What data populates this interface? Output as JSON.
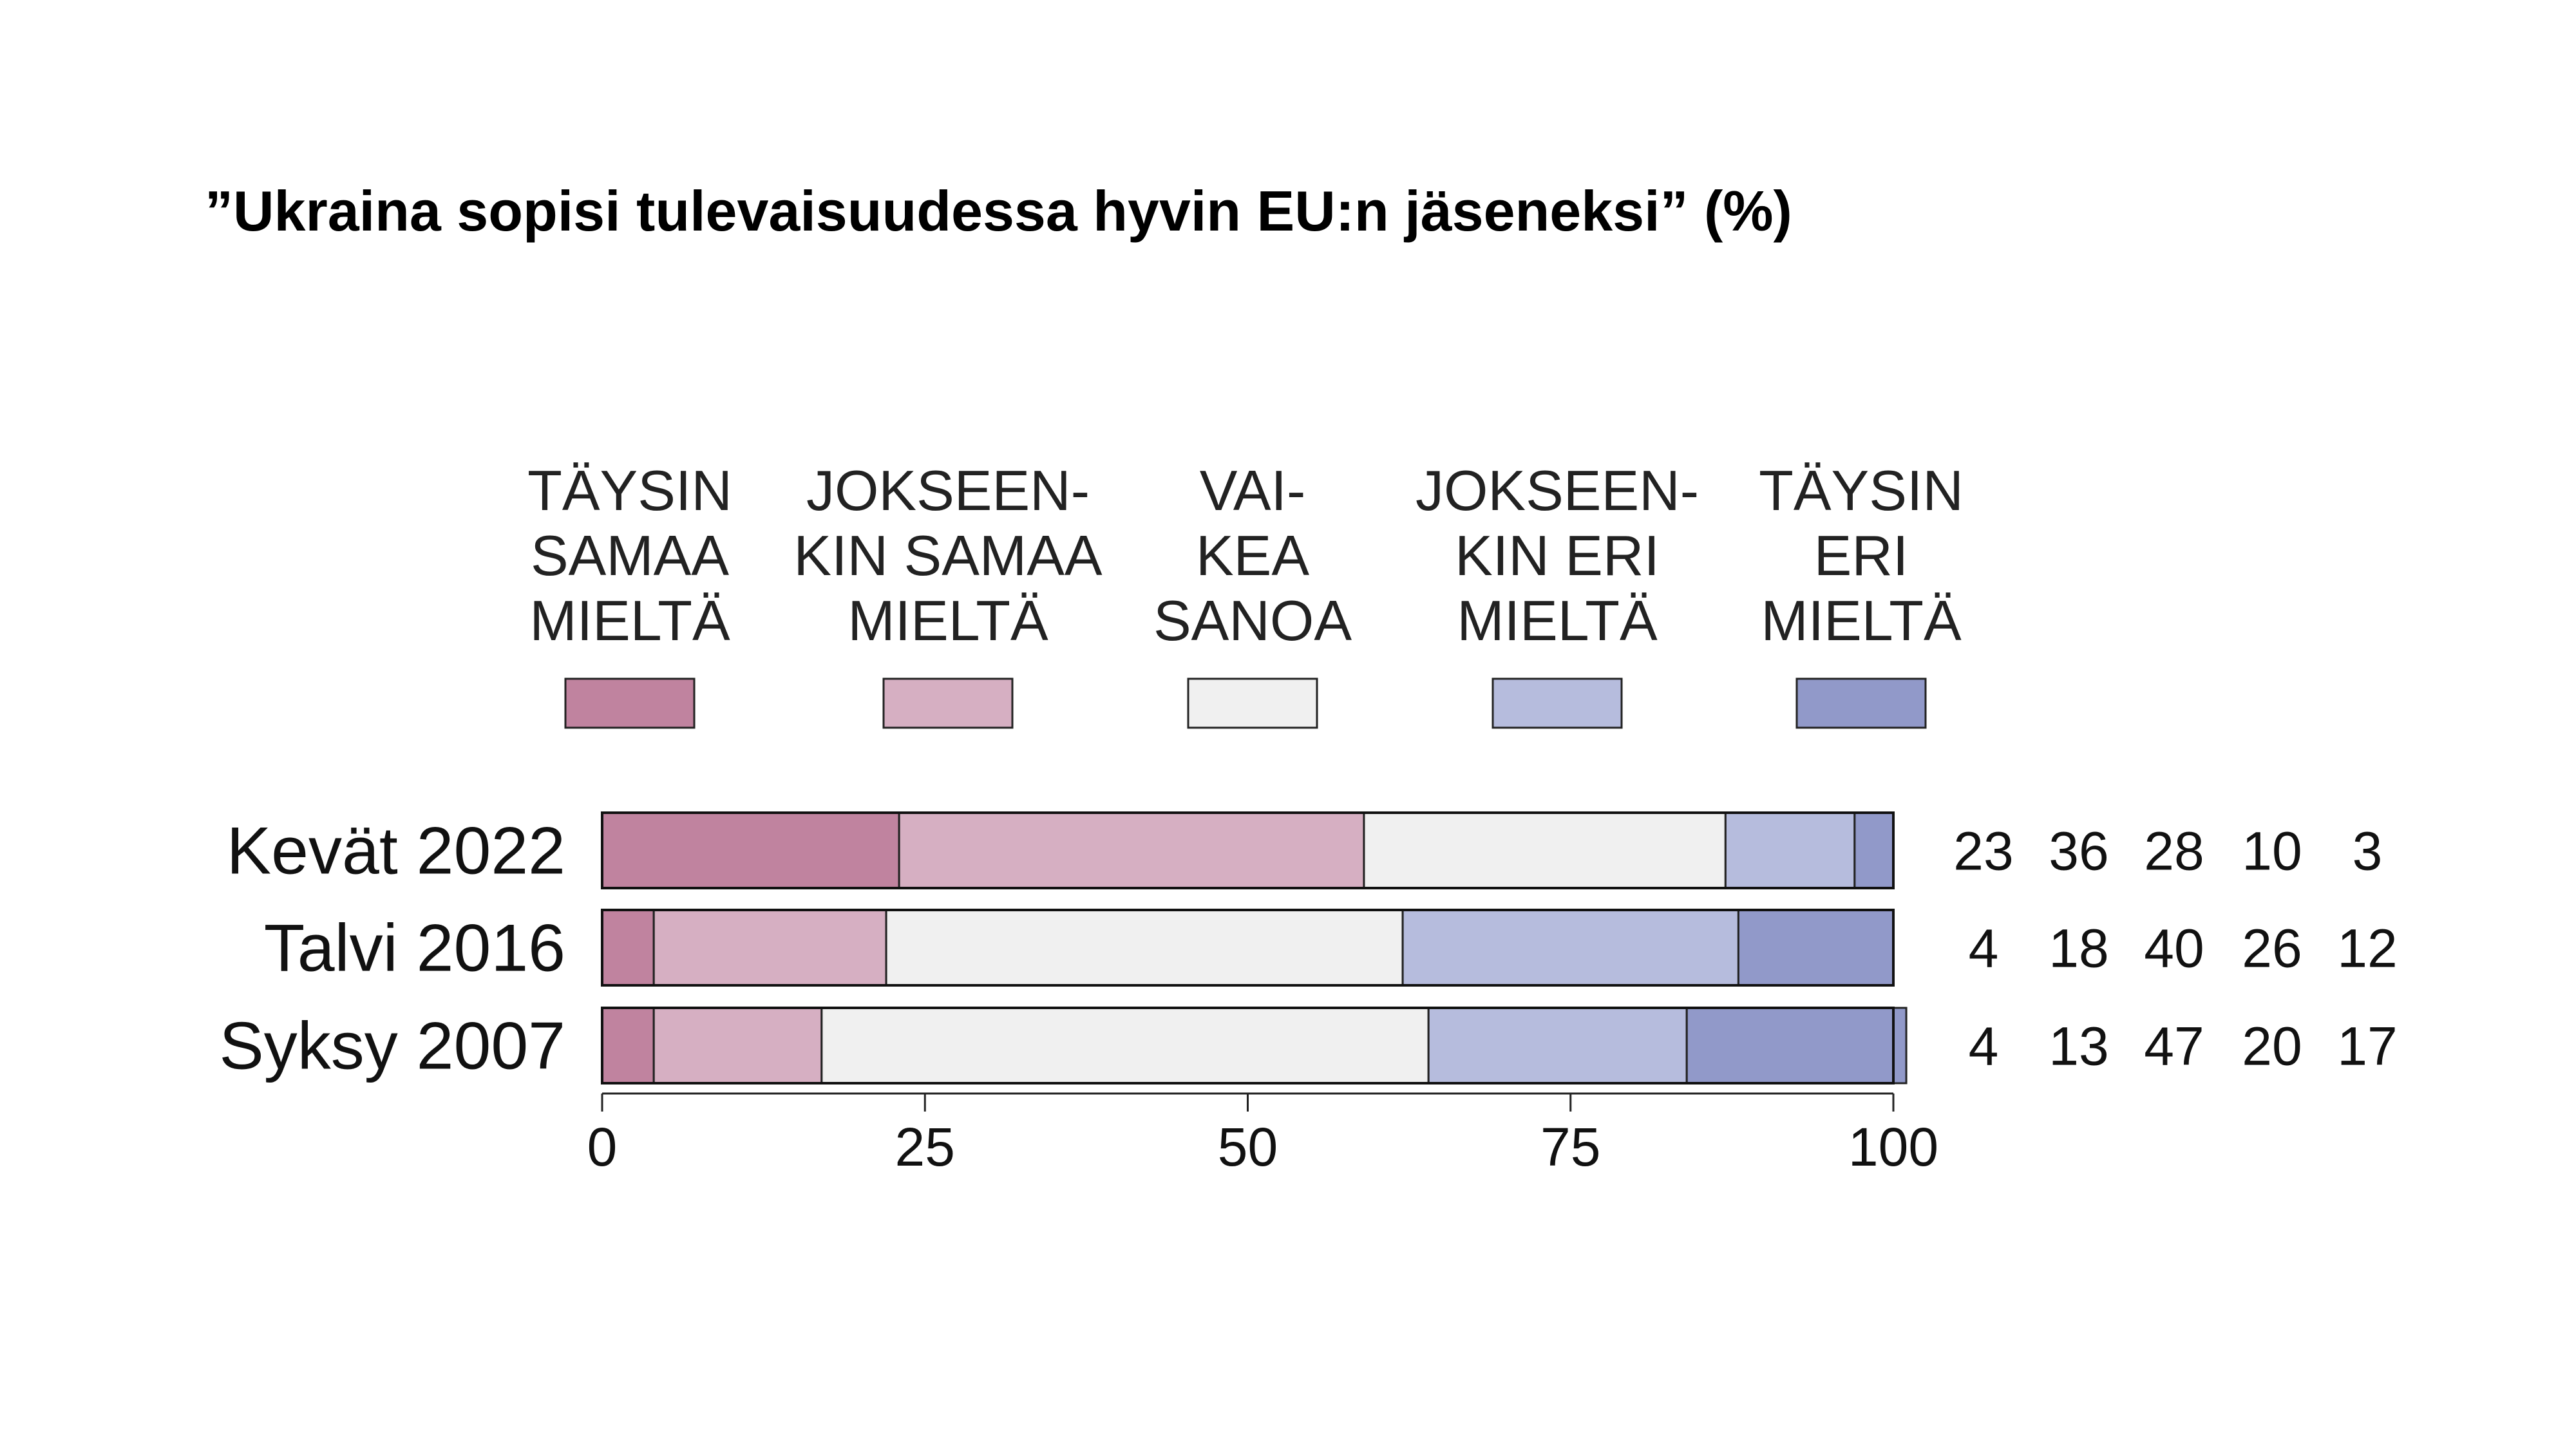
{
  "chart_data": {
    "type": "bar",
    "orientation": "horizontal",
    "stacked": true,
    "title": "”Ukraina sopisi tulevaisuudessa hyvin EU:n jäseneksi” (%)",
    "categories": [
      "Kevät 2022",
      "Talvi 2016",
      "Syksy 2007"
    ],
    "series": [
      {
        "name": [
          "TÄYSIN",
          "SAMAA",
          "MIELTÄ"
        ],
        "color": "#c0839f",
        "values": [
          23,
          4,
          4
        ]
      },
      {
        "name": [
          "JOKSEEN-",
          "KIN SAMAA",
          "MIELTÄ"
        ],
        "color": "#d6afc2",
        "values": [
          36,
          18,
          13
        ]
      },
      {
        "name": [
          "VAI-",
          "KEA",
          "SANOA"
        ],
        "color": "#f0f0f0",
        "values": [
          28,
          40,
          47
        ]
      },
      {
        "name": [
          "JOKSEEN-",
          "KIN ERI",
          "MIELTÄ"
        ],
        "color": "#b6bcdd",
        "values": [
          10,
          26,
          20
        ]
      },
      {
        "name": [
          "TÄYSIN",
          "ERI",
          "MIELTÄ"
        ],
        "color": "#9199c9",
        "values": [
          3,
          12,
          17
        ]
      }
    ],
    "xlim": [
      0,
      100
    ],
    "xticks": [
      0,
      25,
      50,
      75,
      100
    ],
    "legend_position": "top",
    "value_labels_position": "right"
  }
}
